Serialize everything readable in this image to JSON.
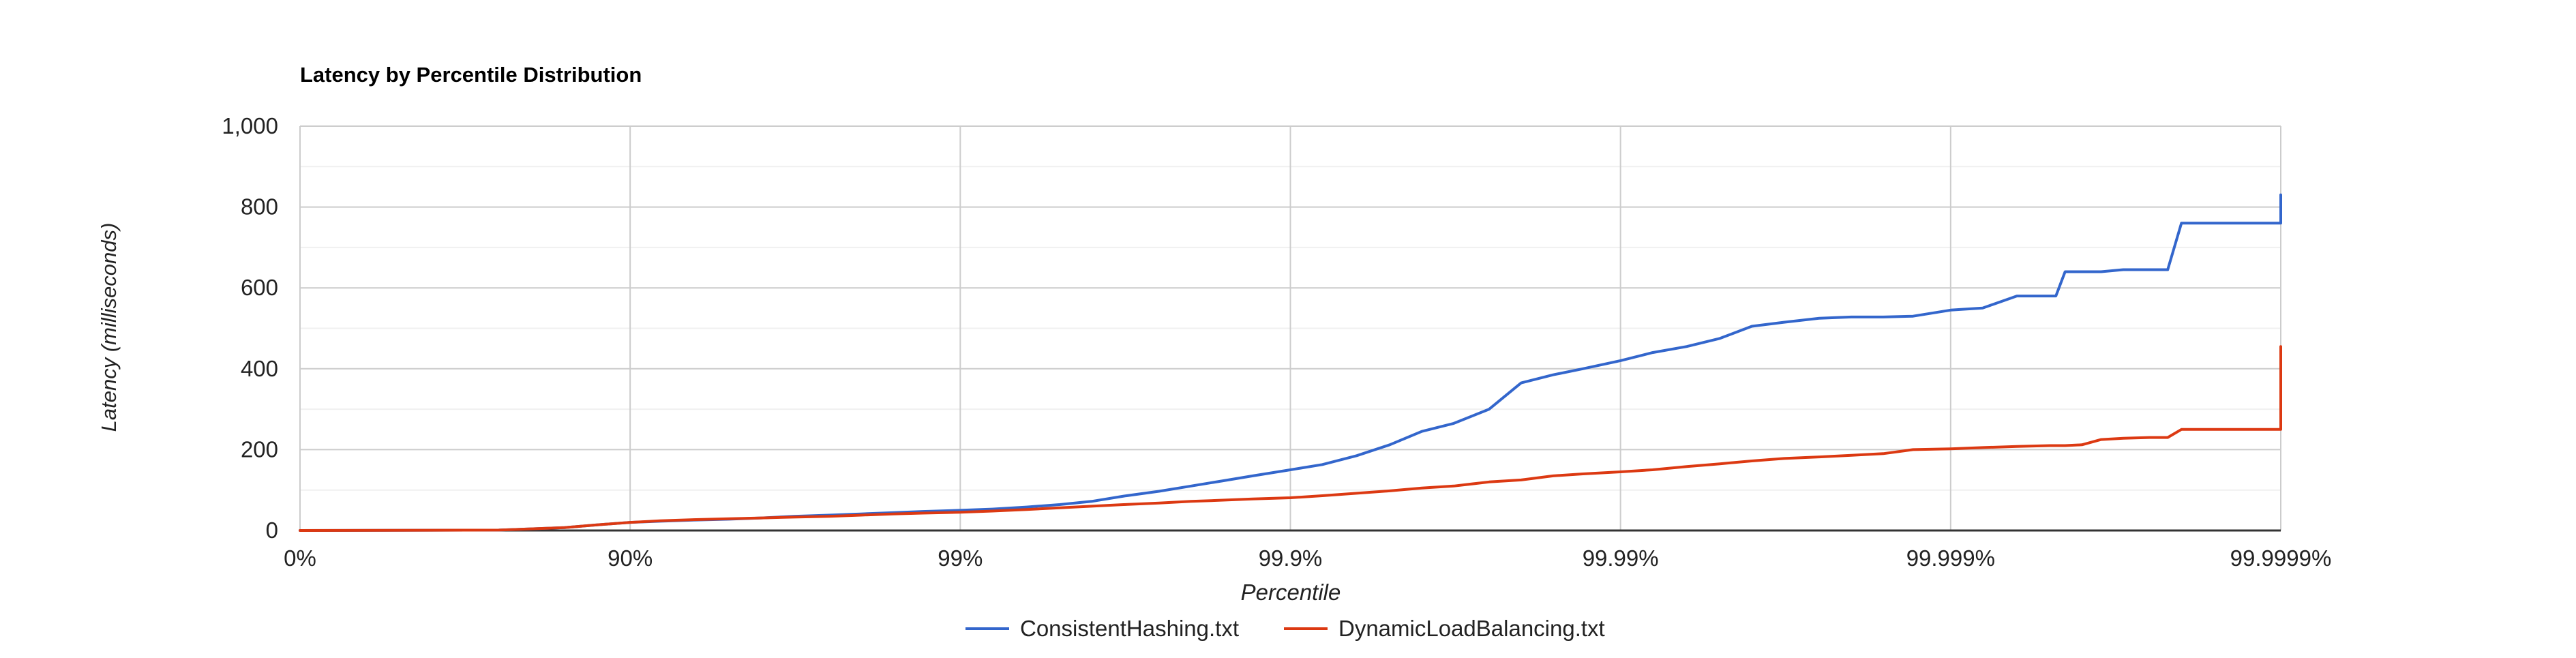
{
  "chart_data": {
    "type": "line",
    "title": "Latency by Percentile Distribution",
    "xlabel": "Percentile",
    "ylabel": "Latency (milliseconds)",
    "x_scale": "log-percentile",
    "xlim": [
      "0%",
      "99.9999%"
    ],
    "ylim": [
      0,
      1000
    ],
    "x_ticks": [
      "0%",
      "90%",
      "99%",
      "99.9%",
      "99.99%",
      "99.999%",
      "99.9999%"
    ],
    "y_ticks": [
      "0",
      "200",
      "400",
      "600",
      "800",
      "1,000"
    ],
    "y_tick_values": [
      0,
      200,
      400,
      600,
      800,
      1000
    ],
    "grid": true,
    "legend_position": "bottom",
    "series": [
      {
        "name": "ConsistentHashing.txt",
        "color": "#3366cc",
        "x": [
          "0%",
          "75%",
          "84.2%",
          "87.4%",
          "90%",
          "91.9%",
          "93.7%",
          "95%",
          "96%",
          "96.8%",
          "97.5%",
          "98%",
          "98.4%",
          "98.7%",
          "99%",
          "99.2%",
          "99.37%",
          "99.5%",
          "99.6%",
          "99.68%",
          "99.75%",
          "99.8%",
          "99.84%",
          "99.87%",
          "99.9%",
          "99.92%",
          "99.937%",
          "99.95%",
          "99.96%",
          "99.968%",
          "99.975%",
          "99.98%",
          "99.984%",
          "99.987%",
          "99.99%",
          "99.992%",
          "99.9937%",
          "99.995%",
          "99.996%",
          "99.9968%",
          "99.9975%",
          "99.998%",
          "99.9984%",
          "99.9987%",
          "99.999%",
          "99.9992%",
          "99.99937%",
          "99.9995%"
        ],
        "values": [
          0,
          1,
          7,
          14,
          20,
          23,
          26,
          28,
          31,
          35,
          38,
          41,
          44,
          47,
          50,
          53,
          58,
          64,
          72,
          85,
          97,
          110,
          123,
          135,
          150,
          163,
          185,
          212,
          245,
          265,
          300,
          365,
          385,
          400,
          420,
          440,
          455,
          475,
          505,
          515,
          525,
          528,
          528,
          530,
          545,
          550,
          580,
          580
        ],
        "tail_x": [
          "99.99952%",
          "99.99955%",
          "99.9996%",
          "99.99965%",
          "99.9997%",
          "99.99975%",
          "99.99978%",
          "99.9998%",
          "99.99985%",
          "99.99988%",
          "99.9999%",
          "99.99991%"
        ],
        "tail_values": [
          580,
          640,
          640,
          640,
          645,
          645,
          645,
          760,
          760,
          760,
          760,
          830
        ]
      },
      {
        "name": "DynamicLoadBalancing.txt",
        "color": "#dc3912",
        "x": [
          "0%",
          "75%",
          "84.2%",
          "87.4%",
          "90%",
          "91.9%",
          "93.7%",
          "95%",
          "96%",
          "96.8%",
          "97.5%",
          "98%",
          "98.4%",
          "98.7%",
          "99%",
          "99.2%",
          "99.37%",
          "99.5%",
          "99.6%",
          "99.68%",
          "99.75%",
          "99.8%",
          "99.84%",
          "99.87%",
          "99.9%",
          "99.92%",
          "99.937%",
          "99.95%",
          "99.96%",
          "99.968%",
          "99.975%",
          "99.98%",
          "99.984%",
          "99.987%",
          "99.99%",
          "99.992%",
          "99.9937%",
          "99.995%",
          "99.996%",
          "99.9968%",
          "99.9975%",
          "99.998%",
          "99.9984%",
          "99.9987%",
          "99.999%",
          "99.9992%",
          "99.99937%",
          "99.9995%"
        ],
        "values": [
          0,
          1,
          7,
          14,
          20,
          24,
          27,
          29,
          31,
          33,
          35,
          38,
          41,
          43,
          45,
          48,
          52,
          56,
          60,
          64,
          68,
          72,
          75,
          78,
          81,
          86,
          92,
          98,
          105,
          110,
          120,
          125,
          135,
          140,
          145,
          150,
          158,
          165,
          172,
          178,
          182,
          186,
          190,
          200,
          202,
          205,
          208,
          210
        ],
        "tail_x": [
          "99.99952%",
          "99.99955%",
          "99.9996%",
          "99.99965%",
          "99.9997%",
          "99.99975%",
          "99.99978%",
          "99.9998%",
          "99.99985%",
          "99.99988%",
          "99.9999%",
          "99.99991%"
        ],
        "tail_values": [
          210,
          210,
          212,
          225,
          228,
          230,
          230,
          250,
          250,
          250,
          250,
          455
        ]
      }
    ]
  }
}
